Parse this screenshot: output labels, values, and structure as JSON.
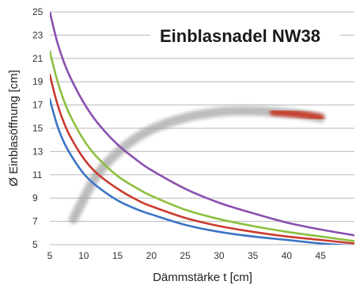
{
  "chart_data": {
    "type": "line",
    "title": "Einblasnadel NW38",
    "xlabel": "Dämmstärke t [cm]",
    "ylabel": "Ø Einblasöffnung [cm]",
    "xlim": [
      5,
      50
    ],
    "ylim": [
      5,
      25
    ],
    "xticks": [
      5,
      10,
      15,
      20,
      25,
      30,
      35,
      40,
      45
    ],
    "yticks": [
      5,
      7,
      9,
      11,
      13,
      15,
      17,
      19,
      21,
      23,
      25
    ],
    "grid": "horizontal",
    "series": [
      {
        "color": "#8a4fb0",
        "x": [
          5,
          6,
          7,
          8,
          10,
          12,
          15,
          18,
          20,
          25,
          30,
          35,
          40,
          45,
          50
        ],
        "y": [
          25,
          22.6,
          20.8,
          19.4,
          17.2,
          15.5,
          13.6,
          12.2,
          11.4,
          9.8,
          8.6,
          7.7,
          6.9,
          6.3,
          5.8
        ]
      },
      {
        "color": "#8dbf3e",
        "x": [
          5,
          6,
          7,
          8,
          10,
          12,
          15,
          18,
          20,
          25,
          30,
          35,
          40,
          45,
          50
        ],
        "y": [
          21.6,
          19.3,
          17.5,
          16.1,
          14.0,
          12.5,
          10.9,
          9.8,
          9.2,
          8.0,
          7.2,
          6.6,
          6.1,
          5.7,
          5.3
        ]
      },
      {
        "color": "#cc3a2f",
        "x": [
          5,
          6,
          7,
          8,
          10,
          12,
          15,
          18,
          20,
          25,
          30,
          35,
          40,
          45,
          50
        ],
        "y": [
          19.6,
          17.3,
          15.6,
          14.3,
          12.4,
          11.1,
          9.8,
          8.8,
          8.3,
          7.3,
          6.6,
          6.1,
          5.7,
          5.4,
          5.1
        ]
      },
      {
        "color": "#3b74c4",
        "x": [
          5,
          6,
          7,
          8,
          10,
          12,
          15,
          18,
          20,
          25,
          30,
          35,
          40,
          45,
          50
        ],
        "y": [
          17.5,
          15.4,
          13.9,
          12.8,
          11.1,
          10.0,
          8.8,
          8.0,
          7.6,
          6.7,
          6.1,
          5.7,
          5.4,
          5.1,
          4.9
        ]
      }
    ],
    "annotation": {
      "name": "trend-arrow",
      "x": [
        8.5,
        12,
        16,
        20,
        25,
        30,
        34,
        38,
        42,
        45
      ],
      "y": [
        7.2,
        11.0,
        13.4,
        14.9,
        15.9,
        16.4,
        16.5,
        16.4,
        16.2,
        15.9
      ],
      "red_from_x": 35
    }
  }
}
